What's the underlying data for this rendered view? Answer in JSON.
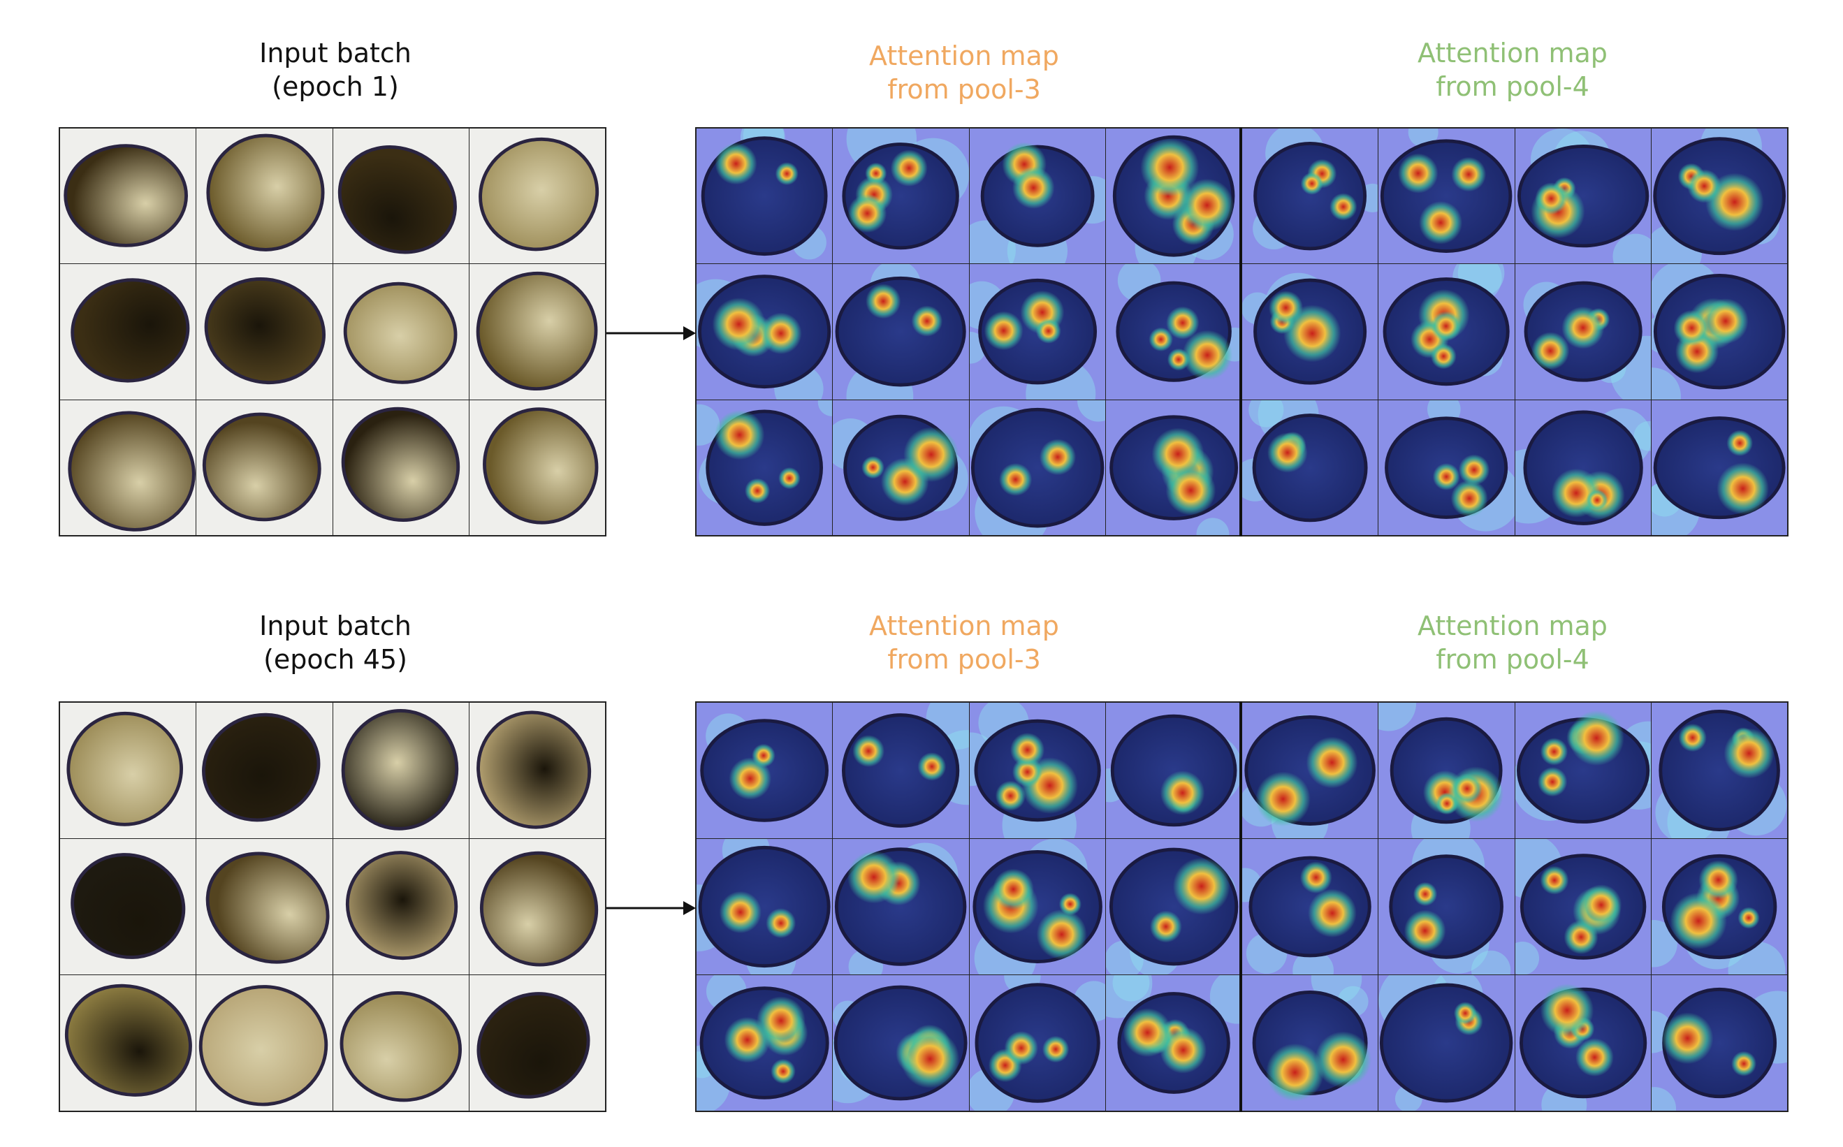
{
  "panels": [
    {
      "input_label_line1": "Input batch",
      "input_label_line2": "(epoch 1)",
      "pool3_label_line1": "Attention map",
      "pool3_label_line2": "from pool-3",
      "pool4_label_line1": "Attention map",
      "pool4_label_line2": "from pool-4"
    },
    {
      "input_label_line1": "Input batch",
      "input_label_line2": "(epoch 45)",
      "pool3_label_line1": "Attention map",
      "pool3_label_line2": "from pool-3",
      "pool4_label_line1": "Attention map",
      "pool4_label_line2": "from pool-4"
    }
  ],
  "colors": {
    "pool3_label": "#f0a860",
    "pool4_label": "#8fc075",
    "input_label": "#111111"
  }
}
